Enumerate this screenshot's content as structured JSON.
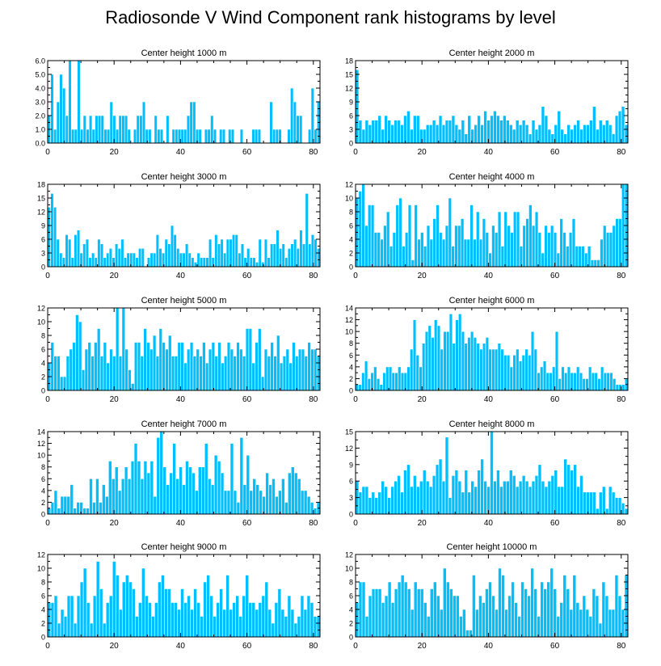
{
  "title": "Radiosonde V Wind Component rank histograms by level",
  "colors": {
    "bar": "#00BFFF",
    "bar_edge": "#ffffff",
    "axis": "#000000"
  },
  "chart_data": [
    {
      "type": "bar",
      "subtitle": "Center height 1000 m",
      "xlim": [
        0,
        82
      ],
      "ylim": [
        0,
        6
      ],
      "x_ticks": [
        "0",
        "20",
        "40",
        "60",
        "80"
      ],
      "y_ticks": [
        "0.0",
        "1.0",
        "2.0",
        "3.0",
        "4.0",
        "5.0",
        "6.0"
      ],
      "values": [
        2,
        5,
        1,
        3,
        5,
        4,
        2,
        6,
        1,
        1,
        6,
        1,
        2,
        1,
        2,
        1,
        2,
        2,
        2,
        1,
        1,
        3,
        2,
        1,
        2,
        2,
        2,
        1,
        0,
        1,
        2,
        2,
        3,
        1,
        1,
        0,
        2,
        1,
        1,
        0,
        2,
        0,
        1,
        1,
        1,
        1,
        1,
        2,
        3,
        3,
        1,
        1,
        0,
        1,
        1,
        2,
        1,
        0,
        1,
        1,
        0,
        1,
        1,
        0,
        0,
        1,
        0,
        0,
        0,
        1,
        1,
        1,
        0,
        0,
        0,
        3,
        1,
        1,
        1,
        0,
        0,
        1,
        4,
        3,
        2,
        2,
        0,
        0,
        1,
        4,
        1,
        3
      ]
    },
    {
      "type": "bar",
      "subtitle": "Center height 2000 m",
      "xlim": [
        0,
        82
      ],
      "ylim": [
        0,
        18
      ],
      "x_ticks": [
        "0",
        "20",
        "40",
        "60",
        "80"
      ],
      "y_ticks": [
        "0",
        "3",
        "6",
        "9",
        "12",
        "15",
        "18"
      ],
      "values": [
        16,
        5,
        3,
        5,
        4,
        5,
        5,
        6,
        3,
        6,
        5,
        4,
        5,
        5,
        4,
        6,
        7,
        3,
        6,
        6,
        3,
        3,
        4,
        4,
        5,
        4,
        6,
        4,
        5,
        5,
        6,
        4,
        3,
        5,
        2,
        6,
        3,
        4,
        6,
        4,
        7,
        5,
        6,
        7,
        6,
        5,
        6,
        5,
        4,
        3,
        5,
        4,
        5,
        4,
        2,
        5,
        3,
        4,
        8,
        6,
        3,
        2,
        4,
        7,
        3,
        2,
        4,
        3,
        4,
        5,
        3,
        4,
        4,
        5,
        8,
        3,
        5,
        4,
        5,
        4,
        2,
        6,
        7,
        8,
        4
      ]
    },
    {
      "type": "bar",
      "subtitle": "Center height 3000 m",
      "xlim": [
        0,
        82
      ],
      "ylim": [
        0,
        18
      ],
      "x_ticks": [
        "0",
        "20",
        "40",
        "60",
        "80"
      ],
      "y_ticks": [
        "0",
        "3",
        "6",
        "9",
        "12",
        "15",
        "18"
      ],
      "values": [
        13,
        16,
        13,
        6,
        3,
        2,
        7,
        6,
        2,
        7,
        8,
        3,
        5,
        6,
        2,
        3,
        2,
        6,
        5,
        2,
        3,
        4,
        2,
        5,
        4,
        6,
        2,
        3,
        3,
        3,
        2,
        4,
        4,
        0,
        2,
        3,
        3,
        7,
        4,
        3,
        6,
        5,
        9,
        7,
        4,
        3,
        3,
        5,
        3,
        2,
        1,
        3,
        2,
        2,
        2,
        6,
        2,
        7,
        5,
        6,
        3,
        6,
        6,
        7,
        7,
        3,
        5,
        2,
        4,
        2,
        2,
        1,
        6,
        1,
        6,
        2,
        5,
        5,
        8,
        4,
        5,
        2,
        4,
        5,
        6,
        4,
        8,
        5,
        16,
        5,
        7,
        6,
        4
      ]
    },
    {
      "type": "bar",
      "subtitle": "Center height 4000 m",
      "xlim": [
        0,
        82
      ],
      "ylim": [
        0,
        12
      ],
      "x_ticks": [
        "0",
        "20",
        "40",
        "60",
        "80"
      ],
      "y_ticks": [
        "0",
        "2",
        "4",
        "6",
        "8",
        "10",
        "12"
      ],
      "values": [
        10,
        11,
        12,
        6,
        9,
        9,
        5,
        5,
        4,
        6,
        8,
        3,
        5,
        9,
        10,
        3,
        5,
        9,
        1,
        9,
        4,
        5,
        3,
        6,
        4,
        7,
        9,
        5,
        4,
        6,
        10,
        3,
        6,
        6,
        7,
        4,
        4,
        9,
        4,
        8,
        4,
        7,
        5,
        2,
        6,
        5,
        8,
        3,
        8,
        6,
        5,
        8,
        8,
        3,
        6,
        7,
        9,
        6,
        8,
        5,
        2,
        6,
        5,
        6,
        5,
        2,
        7,
        5,
        3,
        5,
        7,
        3,
        3,
        3,
        2,
        3,
        1,
        1,
        1,
        4,
        6,
        5,
        5,
        6,
        7,
        7,
        12,
        12
      ]
    },
    {
      "type": "bar",
      "subtitle": "Center height 5000 m",
      "xlim": [
        0,
        82
      ],
      "ylim": [
        0,
        12
      ],
      "x_ticks": [
        "0",
        "20",
        "40",
        "60",
        "80"
      ],
      "y_ticks": [
        "0",
        "2",
        "4",
        "6",
        "8",
        "10",
        "12"
      ],
      "values": [
        4,
        7,
        5,
        5,
        2,
        2,
        5,
        6,
        7,
        11,
        10,
        3,
        6,
        7,
        5,
        7,
        9,
        5,
        7,
        4,
        6,
        5,
        12,
        5,
        12,
        6,
        3,
        1,
        7,
        7,
        5,
        9,
        7,
        6,
        8,
        5,
        9,
        7,
        6,
        8,
        5,
        5,
        7,
        7,
        4,
        6,
        7,
        5,
        6,
        5,
        7,
        4,
        6,
        7,
        5,
        7,
        4,
        5,
        7,
        6,
        5,
        7,
        6,
        5,
        9,
        9,
        4,
        7,
        9,
        2,
        6,
        5,
        7,
        5,
        8,
        4,
        5,
        6,
        4,
        7,
        5,
        6,
        6,
        5,
        7,
        6,
        6,
        5
      ]
    },
    {
      "type": "bar",
      "subtitle": "Center height 6000 m",
      "xlim": [
        0,
        82
      ],
      "ylim": [
        0,
        14
      ],
      "x_ticks": [
        "0",
        "20",
        "40",
        "60",
        "80"
      ],
      "y_ticks": [
        "0",
        "2",
        "4",
        "6",
        "8",
        "10",
        "12",
        "14"
      ],
      "values": [
        1,
        1,
        3,
        5,
        2,
        3,
        4,
        2,
        1,
        3,
        4,
        4,
        3,
        3,
        4,
        3,
        3,
        4,
        7,
        12,
        6,
        4,
        8,
        10,
        11,
        9,
        12,
        11,
        7,
        10,
        10,
        13,
        8,
        12,
        13,
        10,
        8,
        9,
        10,
        9,
        8,
        7,
        8,
        9,
        7,
        7,
        7,
        8,
        7,
        6,
        6,
        4,
        6,
        7,
        5,
        6,
        7,
        6,
        10,
        7,
        3,
        4,
        5,
        3,
        3,
        4,
        10,
        2,
        4,
        3,
        4,
        3,
        3,
        4,
        3,
        2,
        2,
        4,
        3,
        3,
        2,
        4,
        3,
        3,
        3,
        2,
        1,
        1,
        1,
        2
      ]
    },
    {
      "type": "bar",
      "subtitle": "Center height 7000 m",
      "xlim": [
        0,
        82
      ],
      "ylim": [
        0,
        14
      ],
      "x_ticks": [
        "0",
        "20",
        "40",
        "60",
        "80"
      ],
      "y_ticks": [
        "0",
        "2",
        "4",
        "6",
        "8",
        "10",
        "12",
        "14"
      ],
      "values": [
        1,
        2,
        4,
        1,
        3,
        3,
        3,
        5,
        1,
        2,
        2,
        1,
        1,
        6,
        2,
        6,
        2,
        5,
        3,
        9,
        6,
        8,
        4,
        6,
        8,
        6,
        9,
        12,
        9,
        6,
        9,
        7,
        9,
        3,
        13,
        14,
        8,
        5,
        7,
        12,
        6,
        8,
        5,
        9,
        8,
        7,
        4,
        8,
        8,
        12,
        6,
        5,
        10,
        9,
        7,
        4,
        4,
        12,
        4,
        2,
        13,
        5,
        10,
        4,
        6,
        5,
        4,
        3,
        7,
        5,
        6,
        3,
        4,
        6,
        2,
        7,
        8,
        7,
        6,
        4,
        4,
        3,
        2,
        1,
        2
      ]
    },
    {
      "type": "bar",
      "subtitle": "Center height 8000 m",
      "xlim": [
        0,
        82
      ],
      "ylim": [
        0,
        15
      ],
      "x_ticks": [
        "0",
        "20",
        "40",
        "60",
        "80"
      ],
      "y_ticks": [
        "0",
        "3",
        "6",
        "9",
        "12",
        "15"
      ],
      "values": [
        6,
        4,
        5,
        5,
        3,
        4,
        3,
        4,
        6,
        5,
        3,
        5,
        6,
        7,
        4,
        8,
        9,
        5,
        7,
        5,
        6,
        8,
        6,
        5,
        7,
        9,
        10,
        6,
        14,
        3,
        7,
        8,
        6,
        4,
        8,
        4,
        6,
        5,
        8,
        10,
        6,
        5,
        15,
        6,
        8,
        5,
        6,
        6,
        8,
        7,
        5,
        6,
        7,
        6,
        5,
        6,
        7,
        9,
        6,
        5,
        6,
        7,
        8,
        5,
        5,
        10,
        9,
        8,
        9,
        5,
        7,
        4,
        4,
        4,
        4,
        1,
        4,
        5,
        1,
        5,
        4,
        3,
        3,
        2,
        1
      ]
    },
    {
      "type": "bar",
      "subtitle": "Center height 9000 m",
      "xlim": [
        0,
        82
      ],
      "ylim": [
        0,
        12
      ],
      "x_ticks": [
        "0",
        "20",
        "40",
        "60",
        "80"
      ],
      "y_ticks": [
        "0",
        "2",
        "4",
        "6",
        "8",
        "10",
        "12"
      ],
      "values": [
        5,
        5,
        6,
        2,
        4,
        3,
        6,
        6,
        2,
        6,
        8,
        10,
        5,
        2,
        6,
        11,
        7,
        2,
        5,
        6,
        11,
        9,
        4,
        8,
        9,
        8,
        7,
        3,
        5,
        10,
        6,
        5,
        3,
        5,
        8,
        9,
        7,
        7,
        5,
        5,
        4,
        7,
        5,
        6,
        4,
        7,
        5,
        3,
        8,
        9,
        6,
        3,
        5,
        7,
        4,
        9,
        4,
        5,
        6,
        3,
        6,
        9,
        5,
        5,
        4,
        5,
        6,
        8,
        4,
        2,
        5,
        7,
        4,
        3,
        6,
        4,
        2,
        3,
        6,
        4,
        6,
        5,
        3,
        3
      ]
    },
    {
      "type": "bar",
      "subtitle": "Center height 10000 m",
      "xlim": [
        0,
        82
      ],
      "ylim": [
        0,
        12
      ],
      "x_ticks": [
        "0",
        "20",
        "40",
        "60",
        "80"
      ],
      "y_ticks": [
        "0",
        "2",
        "4",
        "6",
        "8",
        "10",
        "12"
      ],
      "values": [
        5,
        8,
        8,
        3,
        6,
        7,
        7,
        7,
        5,
        6,
        8,
        5,
        7,
        8,
        9,
        8,
        7,
        4,
        8,
        7,
        7,
        5,
        3,
        7,
        8,
        6,
        4,
        10,
        8,
        7,
        6,
        6,
        3,
        4,
        1,
        1,
        9,
        4,
        6,
        5,
        7,
        8,
        6,
        4,
        10,
        9,
        4,
        6,
        8,
        5,
        3,
        8,
        7,
        6,
        10,
        7,
        3,
        8,
        7,
        8,
        10,
        7,
        3,
        5,
        9,
        7,
        4,
        9,
        5,
        4,
        6,
        4,
        3,
        7,
        6,
        2,
        8,
        6,
        4,
        4,
        9,
        6,
        4,
        9
      ]
    }
  ]
}
